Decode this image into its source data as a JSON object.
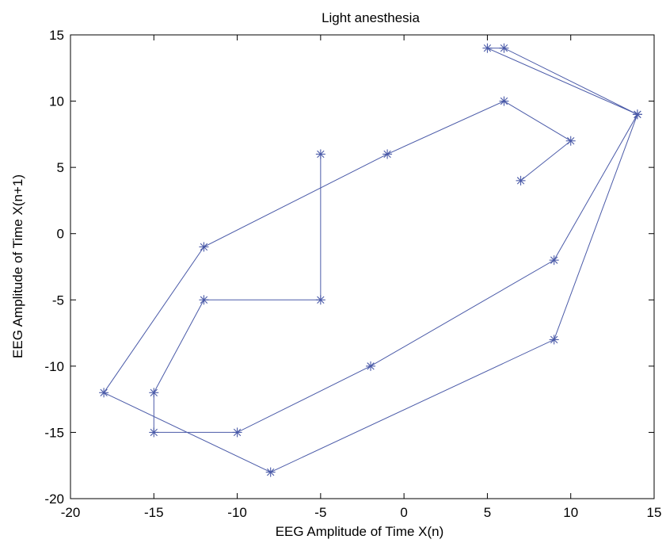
{
  "chart_data": {
    "type": "line",
    "title": "Light anesthesia",
    "xlabel": "EEG Amplitude of Time X(n)",
    "ylabel": "EEG Amplitude of Time X(n+1)",
    "xlim": [
      -20,
      15
    ],
    "ylim": [
      -20,
      15
    ],
    "xticks": [
      -20,
      -15,
      -10,
      -5,
      0,
      5,
      10,
      15
    ],
    "yticks": [
      -20,
      -15,
      -10,
      -5,
      0,
      5,
      10,
      15
    ],
    "grid": false,
    "marker": "asterisk",
    "line_color": "#4a5aa8",
    "series": [
      {
        "x": [
          7,
          10,
          6,
          -1,
          -12,
          -18,
          -8,
          9,
          14,
          5,
          6,
          14,
          9,
          -2,
          -10,
          -15,
          -15,
          -12,
          -5,
          -5
        ],
        "y": [
          4,
          7,
          10,
          6,
          -1,
          -12,
          -18,
          -8,
          9,
          14,
          14,
          9,
          -2,
          -10,
          -15,
          -15,
          -12,
          -5,
          -5,
          6
        ]
      }
    ]
  }
}
